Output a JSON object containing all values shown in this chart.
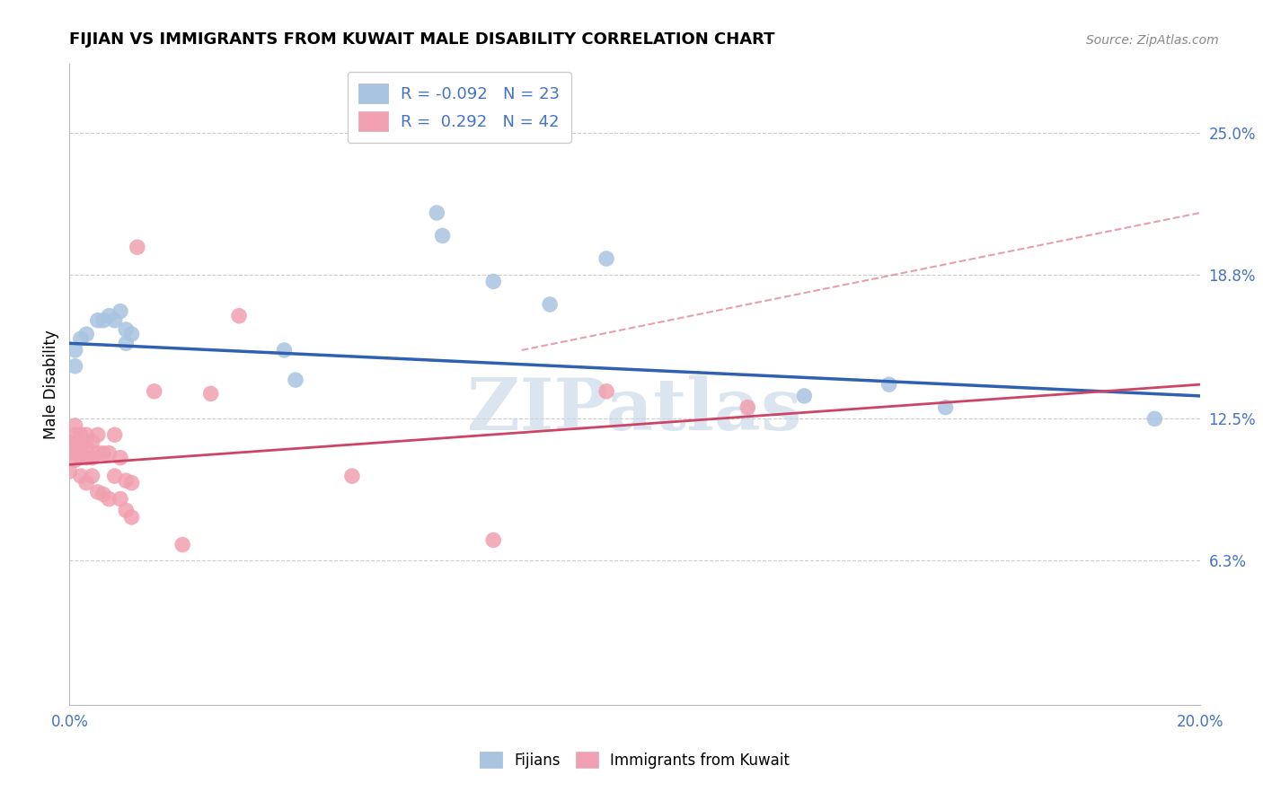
{
  "title": "FIJIAN VS IMMIGRANTS FROM KUWAIT MALE DISABILITY CORRELATION CHART",
  "source": "Source: ZipAtlas.com",
  "ylabel": "Male Disability",
  "xlim": [
    0.0,
    0.2
  ],
  "ylim": [
    0.0,
    0.28
  ],
  "yticks": [
    0.063,
    0.125,
    0.188,
    0.25
  ],
  "ytick_labels": [
    "6.3%",
    "12.5%",
    "18.8%",
    "25.0%"
  ],
  "xticks": [
    0.0,
    0.02,
    0.04,
    0.06,
    0.08,
    0.1,
    0.12,
    0.14,
    0.16,
    0.18,
    0.2
  ],
  "xticklabel_show": {
    "0.0": "0.0%",
    "0.20": "20.0%"
  },
  "r_fijian": "-0.092",
  "n_fijian": "23",
  "r_kuwait": "0.292",
  "n_kuwait": "42",
  "fijian_color": "#a8c4e0",
  "kuwait_color": "#f0a0b0",
  "trend_fijian_color": "#3060b0",
  "trend_kuwait_color": "#cc4466",
  "trend_dashed_color": "#e08898",
  "watermark_color": "#c8d8e8",
  "fijian_x": [
    0.001,
    0.001,
    0.002,
    0.003,
    0.005,
    0.006,
    0.007,
    0.008,
    0.009,
    0.01,
    0.01,
    0.011,
    0.038,
    0.04,
    0.065,
    0.066,
    0.075,
    0.085,
    0.095,
    0.13,
    0.145,
    0.155,
    0.192
  ],
  "fijian_y": [
    0.155,
    0.148,
    0.16,
    0.162,
    0.168,
    0.168,
    0.17,
    0.168,
    0.172,
    0.164,
    0.158,
    0.162,
    0.155,
    0.142,
    0.215,
    0.205,
    0.185,
    0.175,
    0.195,
    0.135,
    0.14,
    0.13,
    0.125
  ],
  "kuwait_x": [
    0.0,
    0.0,
    0.0,
    0.001,
    0.001,
    0.001,
    0.001,
    0.002,
    0.002,
    0.002,
    0.002,
    0.003,
    0.003,
    0.003,
    0.003,
    0.004,
    0.004,
    0.004,
    0.005,
    0.005,
    0.005,
    0.006,
    0.006,
    0.007,
    0.007,
    0.008,
    0.008,
    0.009,
    0.009,
    0.01,
    0.01,
    0.011,
    0.011,
    0.012,
    0.015,
    0.02,
    0.025,
    0.03,
    0.05,
    0.075,
    0.095,
    0.12
  ],
  "kuwait_y": [
    0.115,
    0.11,
    0.102,
    0.122,
    0.118,
    0.113,
    0.107,
    0.118,
    0.113,
    0.108,
    0.1,
    0.118,
    0.113,
    0.108,
    0.097,
    0.115,
    0.108,
    0.1,
    0.118,
    0.11,
    0.093,
    0.11,
    0.092,
    0.11,
    0.09,
    0.118,
    0.1,
    0.108,
    0.09,
    0.098,
    0.085,
    0.097,
    0.082,
    0.2,
    0.137,
    0.07,
    0.136,
    0.17,
    0.1,
    0.072,
    0.137,
    0.13
  ],
  "trend_fijian_x0": 0.0,
  "trend_fijian_y0": 0.158,
  "trend_fijian_x1": 0.2,
  "trend_fijian_y1": 0.135,
  "trend_kuwait_x0": 0.0,
  "trend_kuwait_y0": 0.105,
  "trend_kuwait_x1": 0.2,
  "trend_kuwait_y1": 0.14,
  "trend_dash_x0": 0.08,
  "trend_dash_y0": 0.155,
  "trend_dash_x1": 0.2,
  "trend_dash_y1": 0.215
}
